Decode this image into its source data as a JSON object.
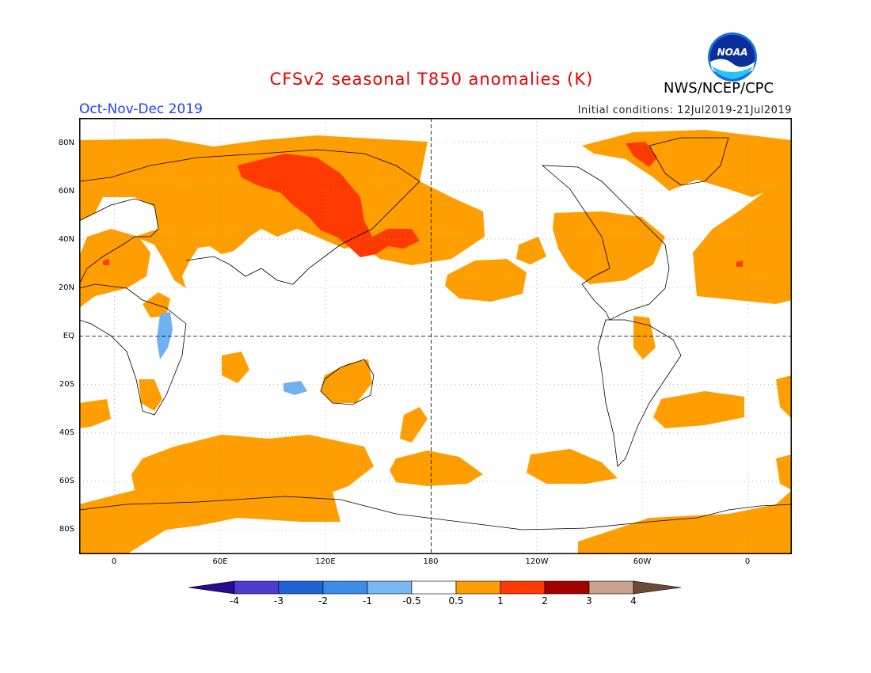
{
  "header": {
    "title": "CFSv2 seasonal T850 anomalies (K)",
    "org": "NWS/NCEP/CPC",
    "season": "Oct-Nov-Dec 2019",
    "initial_conditions": "Initial conditions: 12Jul2019-21Jul2019",
    "logo_text": "NOAA"
  },
  "map": {
    "lat_labels": [
      "80N",
      "60N",
      "40N",
      "20N",
      "EQ",
      "20S",
      "40S",
      "60S",
      "80S"
    ],
    "lon_labels": [
      "0",
      "60E",
      "120E",
      "180",
      "120W",
      "60W",
      "0"
    ],
    "colors": {
      "warm_05_1": "#ff9e00",
      "warm_1_2": "#ff3a00",
      "cool_05_1": "#6fb0f0",
      "coast": "#000000"
    }
  },
  "colorbar": {
    "labels": [
      "-4",
      "-3",
      "-2",
      "-1",
      "-0.5",
      "0.5",
      "1",
      "2",
      "3",
      "4"
    ],
    "colors": [
      "#2a0a8c",
      "#4b3ccf",
      "#1f64d4",
      "#3b8be8",
      "#7ab8f2",
      "#ffffff",
      "#ff9e00",
      "#ff3a00",
      "#a30000",
      "#c9a18f",
      "#6b4a3a"
    ]
  }
}
